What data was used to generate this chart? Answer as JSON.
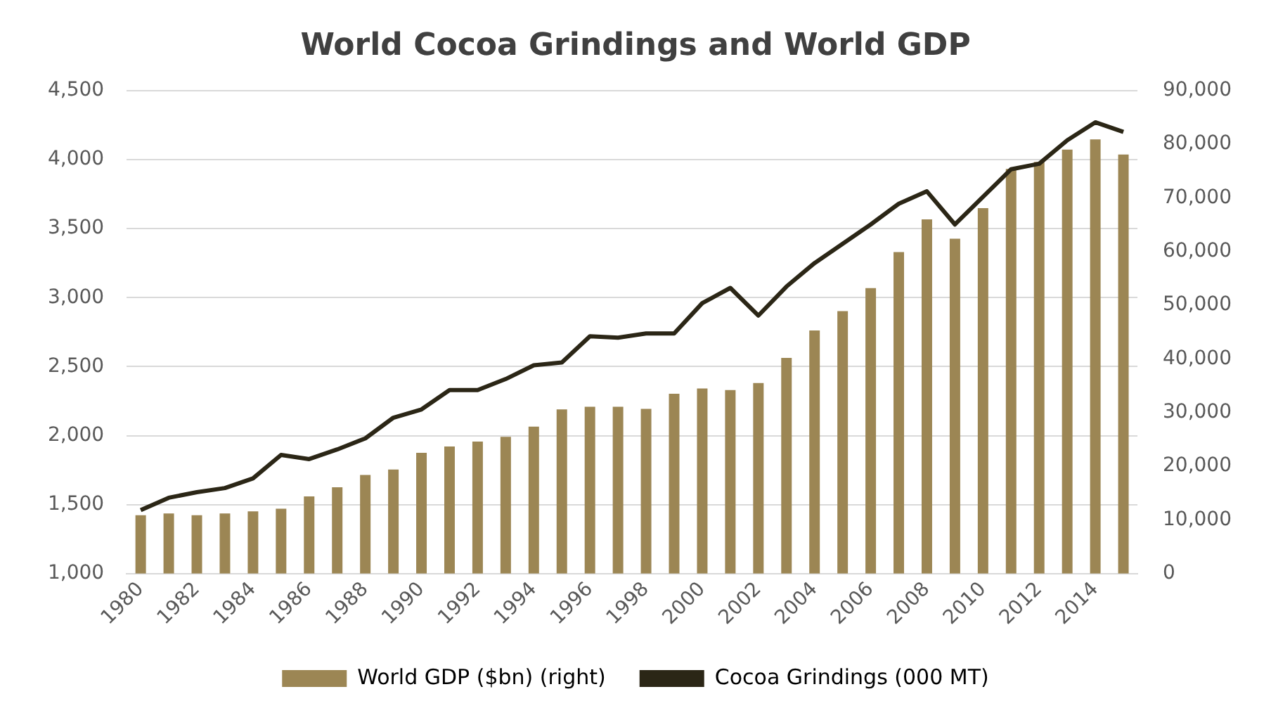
{
  "chart_data": {
    "type": "bar",
    "title": "World Cocoa Grindings and World GDP",
    "categories": [
      "1980",
      null,
      "1982",
      null,
      "1984",
      null,
      "1986",
      null,
      "1988",
      null,
      "1990",
      null,
      "1992",
      null,
      "1994",
      null,
      "1996",
      null,
      "1998",
      null,
      "2000",
      null,
      "2002",
      null,
      "2004",
      null,
      "2006",
      null,
      "2008",
      null,
      "2010",
      null,
      "2012",
      null,
      "2014",
      null
    ],
    "series": [
      {
        "name": "World GDP ($bn) (right)",
        "axis": "y2",
        "color": "#9c8654",
        "values": [
          10900,
          11200,
          10900,
          11200,
          11600,
          12100,
          14400,
          16100,
          18400,
          19400,
          22500,
          23700,
          24600,
          25500,
          27400,
          30600,
          31100,
          31100,
          30700,
          33500,
          34500,
          34200,
          35500,
          40200,
          45300,
          48900,
          53200,
          59900,
          66000,
          62400,
          68100,
          75400,
          76700,
          79000,
          80900,
          78100
        ]
      },
      {
        "name": "Cocoa Grindings (000 MT)",
        "type": "line",
        "axis": "y",
        "color": "#2b2616",
        "values": [
          1460,
          1550,
          1590,
          1620,
          1690,
          1860,
          1830,
          1900,
          1980,
          2130,
          2190,
          2330,
          2330,
          2410,
          2510,
          2530,
          2720,
          2710,
          2740,
          2740,
          2960,
          3070,
          2870,
          3080,
          3250,
          3390,
          3530,
          3680,
          3770,
          3530,
          3730,
          3930,
          3970,
          4140,
          4270,
          4200
        ]
      }
    ],
    "ylim": [
      1000,
      4500
    ],
    "yticks": [
      {
        "value": 1000,
        "label": "1,000"
      },
      {
        "value": 1500,
        "label": "1,500"
      },
      {
        "value": 2000,
        "label": "2,000"
      },
      {
        "value": 2500,
        "label": "2,500"
      },
      {
        "value": 3000,
        "label": "3,000"
      },
      {
        "value": 3500,
        "label": "3,500"
      },
      {
        "value": 4000,
        "label": "4,000"
      },
      {
        "value": 4500,
        "label": "4,500"
      }
    ],
    "y2lim": [
      0,
      90000
    ],
    "y2ticks": [
      0,
      {
        "value": 10000,
        "label": "10,000"
      },
      {
        "value": 20000,
        "label": "20,000"
      },
      {
        "value": 30000,
        "label": "30,000"
      },
      {
        "value": 40000,
        "label": "40,000"
      },
      {
        "value": 50000,
        "label": "50,000"
      },
      {
        "value": 60000,
        "label": "60,000"
      },
      {
        "value": 70000,
        "label": "70,000"
      },
      {
        "value": 80000,
        "label": "80,000"
      },
      {
        "value": 90000,
        "label": "90,000"
      }
    ],
    "grid": "y",
    "legend": "bottom",
    "marker": "none",
    "line_style": "solid"
  }
}
